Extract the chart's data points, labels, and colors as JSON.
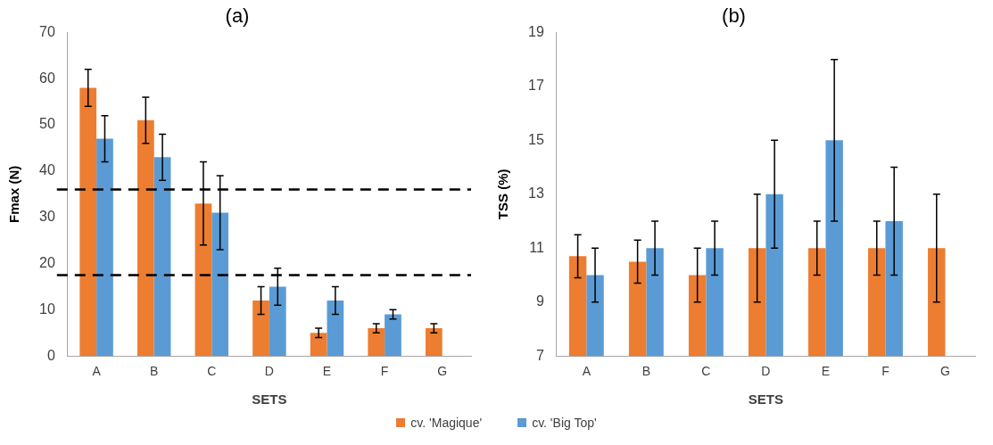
{
  "chart_data": [
    {
      "type": "bar",
      "title": "(a)",
      "xlabel": "SETS",
      "ylabel": "Fmax (N)",
      "categories": [
        "A",
        "B",
        "C",
        "D",
        "E",
        "F",
        "G"
      ],
      "series": [
        {
          "name": "cv. 'Magique'",
          "color": "#ed7d31",
          "values": [
            58,
            51,
            33,
            12,
            5,
            6,
            6
          ],
          "errors": [
            4,
            5,
            9,
            3,
            1,
            1,
            1
          ]
        },
        {
          "name": "cv. 'Big Top'",
          "color": "#5b9bd5",
          "values": [
            47,
            43,
            31,
            15,
            12,
            9,
            null
          ],
          "errors": [
            5,
            5,
            8,
            4,
            3,
            1,
            null
          ]
        }
      ],
      "ylim": [
        0,
        70
      ],
      "yticks": [
        0,
        10,
        20,
        30,
        40,
        50,
        60,
        70
      ],
      "grid": false,
      "legend": "bottom",
      "ref_lines": [
        {
          "axis": "y",
          "value": 36,
          "line_style": "dashed",
          "color": "#000000"
        },
        {
          "axis": "y",
          "value": 17.5,
          "line_style": "dashed",
          "color": "#000000"
        }
      ]
    },
    {
      "type": "bar",
      "title": "(b)",
      "xlabel": "SETS",
      "ylabel": "TSS (%)",
      "categories": [
        "A",
        "B",
        "C",
        "D",
        "E",
        "F",
        "G"
      ],
      "series": [
        {
          "name": "cv. 'Magique'",
          "color": "#ed7d31",
          "values": [
            10.7,
            10.5,
            10,
            11,
            11,
            11,
            11
          ],
          "errors": [
            [
              9.9,
              11.5
            ],
            [
              9.7,
              11.3
            ],
            1,
            2,
            1,
            1,
            2
          ]
        },
        {
          "name": "cv. 'Big Top'",
          "color": "#5b9bd5",
          "values": [
            10,
            11,
            11,
            13,
            15,
            12,
            null
          ],
          "errors": [
            1,
            1,
            1,
            2,
            3,
            2,
            null
          ]
        }
      ],
      "ylim": [
        7,
        19
      ],
      "yticks": [
        7,
        9,
        11,
        13,
        15,
        17,
        19
      ],
      "grid": false,
      "legend": "bottom"
    }
  ]
}
